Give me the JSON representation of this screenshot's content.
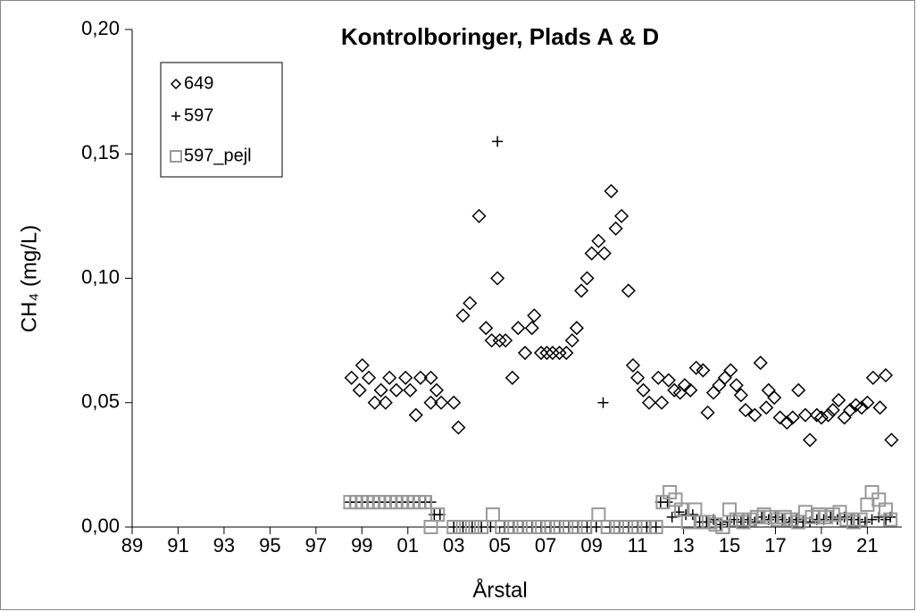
{
  "chart_data": {
    "type": "scatter",
    "title": "Kontrolboringer, Plads A & D",
    "x_label": "Årstal",
    "y_label": "CH₄ (mg/L)",
    "xlim": [
      1989,
      2022.5
    ],
    "ylim": [
      0,
      0.2
    ],
    "xticks": [
      {
        "value": 1989,
        "label": "89"
      },
      {
        "value": 1991,
        "label": "91"
      },
      {
        "value": 1993,
        "label": "93"
      },
      {
        "value": 1995,
        "label": "95"
      },
      {
        "value": 1997,
        "label": "97"
      },
      {
        "value": 1999,
        "label": "99"
      },
      {
        "value": 2001,
        "label": "01"
      },
      {
        "value": 2003,
        "label": "03"
      },
      {
        "value": 2005,
        "label": "05"
      },
      {
        "value": 2007,
        "label": "07"
      },
      {
        "value": 2009,
        "label": "09"
      },
      {
        "value": 2011,
        "label": "11"
      },
      {
        "value": 2013,
        "label": "13"
      },
      {
        "value": 2015,
        "label": "15"
      },
      {
        "value": 2017,
        "label": "17"
      },
      {
        "value": 2019,
        "label": "19"
      },
      {
        "value": 2021,
        "label": "21"
      }
    ],
    "yticks": [
      {
        "value": 0,
        "label": "0,00"
      },
      {
        "value": 0.05,
        "label": "0,05"
      },
      {
        "value": 0.1,
        "label": "0,10"
      },
      {
        "value": 0.15,
        "label": "0,15"
      },
      {
        "value": 0.2,
        "label": "0,20"
      }
    ],
    "legend": "top-left",
    "series": [
      {
        "name": "649",
        "marker": "diamond",
        "color": "#000000",
        "x": [
          1998.55,
          1999.02,
          1998.9,
          1999.3,
          1999.56,
          1999.83,
          2000.03,
          2000.2,
          2000.5,
          2000.9,
          2001.1,
          2001.35,
          2001.55,
          2002.0,
          2002.0,
          2002.25,
          2002.45,
          2003.0,
          2003.2,
          2003.4,
          2003.7,
          2004.1,
          2004.4,
          2004.65,
          2004.9,
          2005.0,
          2005.25,
          2005.55,
          2005.8,
          2006.1,
          2006.5,
          2006.4,
          2006.8,
          2007.05,
          2007.3,
          2007.6,
          2007.9,
          2008.15,
          2008.35,
          2008.55,
          2008.8,
          2009.0,
          2009.3,
          2009.55,
          2009.85,
          2010.05,
          2010.3,
          2010.6,
          2010.8,
          2011.0,
          2011.25,
          2011.5,
          2011.9,
          2012.05,
          2012.35,
          2012.6,
          2012.85,
          2013.05,
          2013.3,
          2013.55,
          2013.85,
          2014.05,
          2014.3,
          2014.55,
          2014.8,
          2015.05,
          2015.3,
          2015.5,
          2015.7,
          2016.1,
          2016.35,
          2016.6,
          2016.7,
          2016.95,
          2017.2,
          2017.5,
          2017.75,
          2018.0,
          2018.3,
          2018.5,
          2018.8,
          2019.0,
          2019.3,
          2019.5,
          2019.75,
          2020.0,
          2020.25,
          2020.5,
          2020.75,
          2021.0,
          2021.25,
          2021.55,
          2021.8,
          2022.05
        ],
        "values": [
          0.06,
          0.065,
          0.055,
          0.06,
          0.05,
          0.055,
          0.05,
          0.06,
          0.055,
          0.06,
          0.055,
          0.045,
          0.06,
          0.06,
          0.05,
          0.055,
          0.05,
          0.05,
          0.04,
          0.085,
          0.09,
          0.125,
          0.08,
          0.075,
          0.1,
          0.075,
          0.075,
          0.06,
          0.08,
          0.07,
          0.085,
          0.08,
          0.07,
          0.07,
          0.07,
          0.07,
          0.07,
          0.075,
          0.08,
          0.095,
          0.1,
          0.11,
          0.115,
          0.11,
          0.135,
          0.12,
          0.125,
          0.095,
          0.065,
          0.06,
          0.055,
          0.05,
          0.06,
          0.05,
          0.059,
          0.055,
          0.054,
          0.057,
          0.055,
          0.064,
          0.063,
          0.046,
          0.054,
          0.057,
          0.06,
          0.063,
          0.057,
          0.053,
          0.047,
          0.045,
          0.066,
          0.048,
          0.055,
          0.052,
          0.044,
          0.042,
          0.044,
          0.055,
          0.045,
          0.035,
          0.045,
          0.044,
          0.045,
          0.047,
          0.051,
          0.044,
          0.047,
          0.049,
          0.048,
          0.05,
          0.06,
          0.048,
          0.061,
          0.035
        ]
      },
      {
        "name": "597",
        "marker": "plus",
        "color": "#000000",
        "x": [
          1998.5,
          1998.75,
          1999,
          1999.25,
          1999.5,
          1999.75,
          2000,
          2000.25,
          2000.5,
          2000.75,
          2001,
          2001.25,
          2001.5,
          2001.75,
          2002,
          2002.15,
          2002.4,
          2003,
          2003.4,
          2003.8,
          2004.2,
          2004.6,
          2004.9,
          2005.2,
          2005.6,
          2006,
          2006.4,
          2006.8,
          2007.2,
          2007.6,
          2008,
          2008.4,
          2008.8,
          2009.2,
          2009.5,
          2009.8,
          2010.2,
          2010.6,
          2011,
          2011.4,
          2011.8,
          2012,
          2012.3,
          2012.5,
          2012.8,
          2013.1,
          2013.4,
          2013.7,
          2014,
          2014.3,
          2014.6,
          2014.9,
          2015.2,
          2015.5,
          2015.8,
          2016.1,
          2016.4,
          2016.7,
          2017,
          2017.3,
          2017.6,
          2017.9,
          2018.2,
          2018.5,
          2018.8,
          2019.1,
          2019.4,
          2019.7,
          2020,
          2020.3,
          2020.6,
          2020.9,
          2021.2,
          2021.5,
          2021.8,
          2022
        ],
        "values": [
          0.01,
          0.01,
          0.01,
          0.01,
          0.01,
          0.01,
          0.01,
          0.01,
          0.01,
          0.01,
          0.01,
          0.01,
          0.01,
          0.01,
          0.01,
          0.005,
          0.005,
          0,
          0,
          0,
          0,
          0,
          0.155,
          0,
          0,
          0,
          0,
          0,
          0,
          0,
          0,
          0,
          0,
          0,
          0.05,
          0,
          0,
          0,
          0,
          0,
          0,
          0.01,
          0.01,
          0.004,
          0.006,
          0.005,
          0.005,
          0.002,
          0.002,
          0.003,
          0.001,
          0.002,
          0.003,
          0.002,
          0.003,
          0.002,
          0.004,
          0.003,
          0.004,
          0.003,
          0.002,
          0.003,
          0.002,
          0.002,
          0.003,
          0.003,
          0.004,
          0.003,
          0.004,
          0.003,
          0.003,
          0.002,
          0.003,
          0.004,
          0.003,
          0.004
        ]
      },
      {
        "name": "597_pejl",
        "marker": "square",
        "color": "#999999",
        "x": [
          1998.5,
          1998.75,
          1999,
          1999.25,
          1999.5,
          1999.75,
          2000,
          2000.25,
          2000.5,
          2000.75,
          2001,
          2001.25,
          2001.5,
          2001.75,
          2002,
          2002.3,
          2003,
          2003.4,
          2003.8,
          2004.2,
          2004.7,
          2005.1,
          2005.5,
          2005.9,
          2006.3,
          2006.7,
          2007.1,
          2007.5,
          2007.9,
          2008.3,
          2008.7,
          2009.3,
          2009.7,
          2010.1,
          2010.5,
          2010.9,
          2011.3,
          2011.8,
          2012.1,
          2012.4,
          2012.65,
          2012.9,
          2013.2,
          2013.5,
          2013.8,
          2014.1,
          2014.4,
          2014.7,
          2015,
          2015.3,
          2015.6,
          2015.9,
          2016.2,
          2016.5,
          2016.8,
          2017.1,
          2017.4,
          2017.7,
          2018,
          2018.3,
          2018.6,
          2018.9,
          2019.2,
          2019.5,
          2019.8,
          2020.1,
          2020.4,
          2020.7,
          2021,
          2021.2,
          2021.5,
          2021.8,
          2022
        ],
        "values": [
          0.01,
          0.01,
          0.01,
          0.01,
          0.01,
          0.01,
          0.01,
          0.01,
          0.01,
          0.01,
          0.01,
          0.01,
          0.01,
          0.01,
          0,
          0.005,
          0,
          0,
          0,
          0,
          0.005,
          0,
          0,
          0,
          0,
          0,
          0,
          0,
          0,
          0,
          0,
          0.005,
          0,
          0,
          0,
          0,
          0,
          0,
          0.01,
          0.014,
          0.011,
          0.007,
          0.002,
          0.007,
          0.002,
          0.002,
          0.001,
          0,
          0.007,
          0.003,
          0.002,
          0.003,
          0.004,
          0.005,
          0.004,
          0.003,
          0.004,
          0.003,
          0.002,
          0.006,
          0.004,
          0.005,
          0.004,
          0.005,
          0.006,
          0.003,
          0.002,
          0.003,
          0.009,
          0.014,
          0.011,
          0.007,
          0.003
        ]
      }
    ]
  }
}
